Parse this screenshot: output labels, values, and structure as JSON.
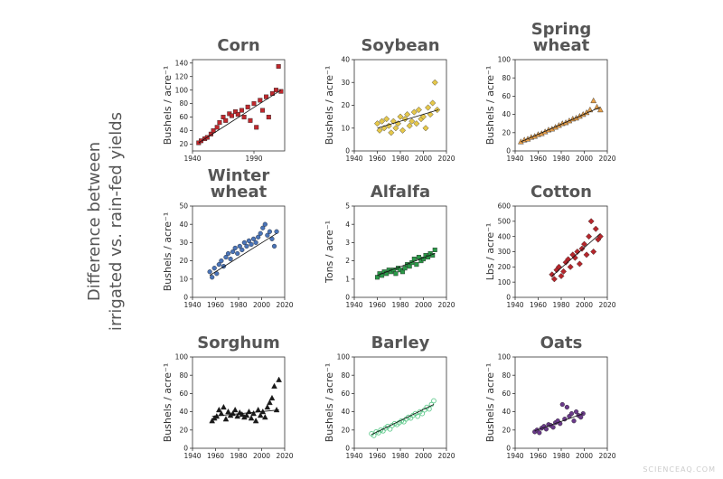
{
  "figure_label": [
    "Difference between",
    "irrigated vs. rain-fed yields"
  ],
  "watermark": "SCIENCEAQ.COM",
  "chart_data": [
    {
      "type": "scatter",
      "title": "Corn",
      "ylabel": "Bushels / acre⁻¹",
      "marker": "square",
      "color": "#c0282d",
      "xlim": [
        1940,
        2015
      ],
      "xticks": [
        1940,
        1990
      ],
      "ylim": [
        10,
        145
      ],
      "yticks": [
        20,
        40,
        60,
        80,
        100,
        120,
        140
      ],
      "x": [
        1945,
        1947,
        1950,
        1952,
        1955,
        1957,
        1960,
        1962,
        1965,
        1967,
        1970,
        1972,
        1975,
        1977,
        1980,
        1982,
        1985,
        1987,
        1990,
        1992,
        1995,
        1997,
        2000,
        2002,
        2005,
        2008,
        2010,
        2012
      ],
      "values": [
        22,
        25,
        28,
        30,
        35,
        40,
        45,
        52,
        60,
        55,
        65,
        62,
        68,
        64,
        70,
        60,
        75,
        55,
        80,
        45,
        85,
        70,
        90,
        60,
        95,
        100,
        135,
        98
      ],
      "trend_x": [
        1945,
        2012
      ],
      "trend_y": [
        22,
        100
      ]
    },
    {
      "type": "scatter",
      "title": "Soybean",
      "ylabel": "Bushels / acre⁻¹",
      "marker": "diamond",
      "color": "#e6c84a",
      "xlim": [
        1940,
        2020
      ],
      "xticks": [
        1940,
        1960,
        1980,
        2000,
        2020
      ],
      "ylim": [
        0,
        40
      ],
      "yticks": [
        0,
        10,
        20,
        30,
        40
      ],
      "x": [
        1960,
        1962,
        1964,
        1966,
        1968,
        1970,
        1972,
        1974,
        1976,
        1978,
        1980,
        1982,
        1984,
        1986,
        1988,
        1990,
        1992,
        1994,
        1996,
        1998,
        2000,
        2002,
        2004,
        2006,
        2008,
        2010,
        2012
      ],
      "values": [
        12,
        9,
        13,
        10,
        14,
        11,
        8,
        13,
        10,
        12,
        15,
        9,
        14,
        16,
        11,
        13,
        17,
        12,
        18,
        14,
        15,
        10,
        19,
        16,
        21,
        30,
        18
      ],
      "trend_x": [
        1960,
        2013
      ],
      "trend_y": [
        10,
        18
      ]
    },
    {
      "type": "scatter",
      "title": "Spring wheat",
      "ylabel": "Bushels / acre⁻¹",
      "marker": "triangle",
      "color": "#e8a04a",
      "xlim": [
        1940,
        2020
      ],
      "xticks": [
        1940,
        1960,
        1980,
        2000,
        2020
      ],
      "ylim": [
        0,
        100
      ],
      "yticks": [
        0,
        20,
        40,
        60,
        80,
        100
      ],
      "x": [
        1945,
        1948,
        1951,
        1954,
        1957,
        1960,
        1963,
        1966,
        1969,
        1972,
        1975,
        1978,
        1981,
        1984,
        1987,
        1990,
        1993,
        1996,
        1999,
        2002,
        2005,
        2008,
        2011,
        2014
      ],
      "values": [
        10,
        12,
        13,
        15,
        16,
        18,
        19,
        21,
        23,
        24,
        26,
        28,
        30,
        31,
        33,
        35,
        36,
        38,
        40,
        42,
        45,
        55,
        48,
        45
      ],
      "trend_x": [
        1945,
        2014
      ],
      "trend_y": [
        10,
        48
      ]
    },
    {
      "type": "scatter",
      "title": "Winter wheat",
      "ylabel": "Bushels / acre⁻¹",
      "marker": "circle",
      "color": "#4a74b8",
      "xlim": [
        1940,
        2020
      ],
      "xticks": [
        1940,
        1960,
        1980,
        2000,
        2020
      ],
      "ylim": [
        0,
        50
      ],
      "yticks": [
        0,
        10,
        20,
        30,
        40,
        50
      ],
      "x": [
        1955,
        1957,
        1959,
        1961,
        1963,
        1965,
        1967,
        1969,
        1971,
        1973,
        1975,
        1977,
        1979,
        1981,
        1983,
        1985,
        1987,
        1989,
        1991,
        1993,
        1995,
        1997,
        1999,
        2001,
        2003,
        2005,
        2007,
        2009,
        2011,
        2013
      ],
      "values": [
        14,
        11,
        16,
        13,
        18,
        20,
        17,
        22,
        24,
        21,
        25,
        27,
        24,
        28,
        26,
        30,
        28,
        31,
        29,
        32,
        30,
        33,
        35,
        38,
        40,
        34,
        36,
        32,
        28,
        36
      ],
      "trend_x": [
        1955,
        2013
      ],
      "trend_y": [
        12,
        35
      ]
    },
    {
      "type": "scatter",
      "title": "Alfalfa",
      "ylabel": "Tons / acre⁻¹",
      "marker": "square",
      "color": "#2a9a48",
      "xlim": [
        1940,
        2020
      ],
      "xticks": [
        1940,
        1960,
        1980,
        2000,
        2020
      ],
      "ylim": [
        0,
        5
      ],
      "yticks": [
        0,
        1,
        2,
        3,
        4,
        5
      ],
      "x": [
        1960,
        1962,
        1964,
        1966,
        1968,
        1970,
        1972,
        1974,
        1976,
        1978,
        1980,
        1982,
        1984,
        1986,
        1988,
        1990,
        1992,
        1994,
        1996,
        1998,
        2000,
        2002,
        2004,
        2006,
        2008,
        2010
      ],
      "values": [
        1.1,
        1.3,
        1.2,
        1.4,
        1.3,
        1.5,
        1.4,
        1.5,
        1.3,
        1.6,
        1.5,
        1.4,
        1.6,
        1.8,
        1.7,
        1.9,
        2.1,
        1.8,
        2.2,
        2.0,
        2.1,
        2.3,
        2.2,
        2.4,
        2.3,
        2.6
      ],
      "trend_x": [
        1960,
        2010
      ],
      "trend_y": [
        1.2,
        2.4
      ]
    },
    {
      "type": "scatter",
      "title": "Cotton",
      "ylabel": "Lbs / acre⁻¹",
      "marker": "diamond",
      "color": "#b5262c",
      "xlim": [
        1940,
        2020
      ],
      "xticks": [
        1940,
        1960,
        1980,
        2000,
        2020
      ],
      "ylim": [
        0,
        600
      ],
      "yticks": [
        0,
        100,
        200,
        300,
        400,
        500,
        600
      ],
      "x": [
        1972,
        1974,
        1976,
        1978,
        1980,
        1982,
        1984,
        1986,
        1988,
        1990,
        1992,
        1994,
        1996,
        1998,
        2000,
        2002,
        2004,
        2006,
        2008,
        2010,
        2012,
        2014
      ],
      "values": [
        150,
        120,
        180,
        200,
        140,
        170,
        230,
        250,
        200,
        280,
        260,
        300,
        220,
        320,
        350,
        280,
        400,
        500,
        300,
        450,
        380,
        400
      ],
      "trend_x": [
        1972,
        2014
      ],
      "trend_y": [
        140,
        420
      ]
    },
    {
      "type": "scatter",
      "title": "Sorghum",
      "ylabel": "Bushels / acre⁻¹",
      "marker": "triangle",
      "color": "#1a1a1a",
      "xlim": [
        1940,
        2020
      ],
      "xticks": [
        1940,
        1960,
        1980,
        2000,
        2020
      ],
      "ylim": [
        0,
        100
      ],
      "yticks": [
        0,
        20,
        40,
        60,
        80,
        100
      ],
      "x": [
        1957,
        1959,
        1961,
        1963,
        1965,
        1967,
        1969,
        1971,
        1973,
        1975,
        1977,
        1979,
        1981,
        1983,
        1985,
        1987,
        1989,
        1991,
        1993,
        1995,
        1997,
        1999,
        2001,
        2003,
        2005,
        2007,
        2009,
        2011,
        2013,
        2015
      ],
      "values": [
        30,
        33,
        35,
        42,
        38,
        45,
        32,
        40,
        36,
        38,
        42,
        35,
        39,
        37,
        34,
        36,
        40,
        33,
        38,
        30,
        42,
        36,
        40,
        34,
        45,
        50,
        55,
        68,
        42,
        75
      ],
      "trend_x": [
        1957,
        2015
      ],
      "trend_y": [
        35,
        42
      ]
    },
    {
      "type": "scatter",
      "title": "Barley",
      "ylabel": "Bushels / acre⁻¹",
      "marker": "open-circle",
      "color": "#5cc88a",
      "xlim": [
        1940,
        2020
      ],
      "xticks": [
        1940,
        1960,
        1980,
        2000,
        2020
      ],
      "ylim": [
        0,
        100
      ],
      "yticks": [
        0,
        20,
        40,
        60,
        80,
        100
      ],
      "x": [
        1955,
        1957,
        1959,
        1961,
        1963,
        1965,
        1967,
        1969,
        1971,
        1973,
        1975,
        1977,
        1979,
        1981,
        1983,
        1985,
        1987,
        1989,
        1991,
        1993,
        1995,
        1997,
        1999,
        2001,
        2003,
        2005,
        2007,
        2009
      ],
      "values": [
        16,
        14,
        18,
        17,
        20,
        19,
        22,
        24,
        21,
        25,
        27,
        26,
        28,
        30,
        29,
        32,
        34,
        33,
        36,
        38,
        35,
        40,
        38,
        42,
        45,
        43,
        48,
        52
      ],
      "trend_x": [
        1955,
        2009
      ],
      "trend_y": [
        15,
        48
      ]
    },
    {
      "type": "scatter",
      "title": "Oats",
      "ylabel": "Bushels / acre⁻¹",
      "marker": "circle",
      "color": "#6a3a8a",
      "xlim": [
        1940,
        2020
      ],
      "xticks": [
        1940,
        1960,
        1980,
        2000,
        2020
      ],
      "ylim": [
        0,
        100
      ],
      "yticks": [
        0,
        20,
        40,
        60,
        80,
        100
      ],
      "x": [
        1957,
        1959,
        1961,
        1963,
        1965,
        1967,
        1969,
        1971,
        1973,
        1975,
        1977,
        1979,
        1981,
        1983,
        1985,
        1987,
        1989,
        1991,
        1993,
        1995,
        1997,
        1999
      ],
      "values": [
        18,
        20,
        17,
        22,
        24,
        21,
        26,
        25,
        23,
        28,
        30,
        27,
        48,
        32,
        45,
        35,
        38,
        30,
        40,
        36,
        34,
        38
      ],
      "trend_x": [
        1957,
        1999
      ],
      "trend_y": [
        19,
        38
      ]
    }
  ]
}
